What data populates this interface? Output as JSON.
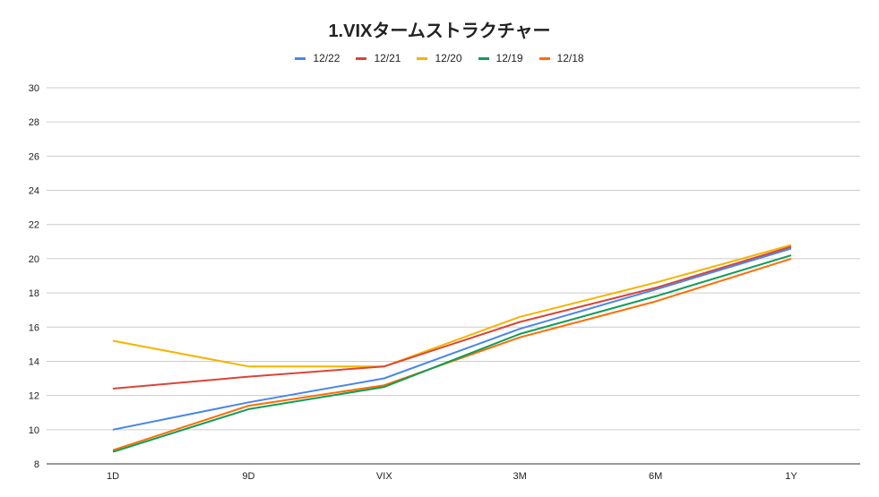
{
  "chart_data": {
    "type": "line",
    "title": "1.VIXタームストラクチャー",
    "categories": [
      "1D",
      "9D",
      "VIX",
      "3M",
      "6M",
      "1Y"
    ],
    "xlabel": "",
    "ylabel": "",
    "ylim": [
      8,
      30
    ],
    "yticks": [
      8,
      10,
      12,
      14,
      16,
      18,
      20,
      22,
      24,
      26,
      28,
      30
    ],
    "grid": true,
    "legend_position": "top",
    "series": [
      {
        "name": "12/22",
        "color": "#4a86e8",
        "values": [
          10.0,
          11.6,
          13.0,
          15.9,
          18.2,
          20.6
        ]
      },
      {
        "name": "12/21",
        "color": "#db4437",
        "values": [
          12.4,
          13.1,
          13.7,
          16.3,
          18.3,
          20.7
        ]
      },
      {
        "name": "12/20",
        "color": "#f4b400",
        "values": [
          15.2,
          13.7,
          13.7,
          16.6,
          18.6,
          20.8
        ]
      },
      {
        "name": "12/19",
        "color": "#0f9d58",
        "values": [
          8.7,
          11.2,
          12.5,
          15.6,
          17.8,
          20.2
        ]
      },
      {
        "name": "12/18",
        "color": "#ff6d01",
        "values": [
          8.8,
          11.4,
          12.6,
          15.4,
          17.5,
          20.0
        ]
      }
    ]
  }
}
